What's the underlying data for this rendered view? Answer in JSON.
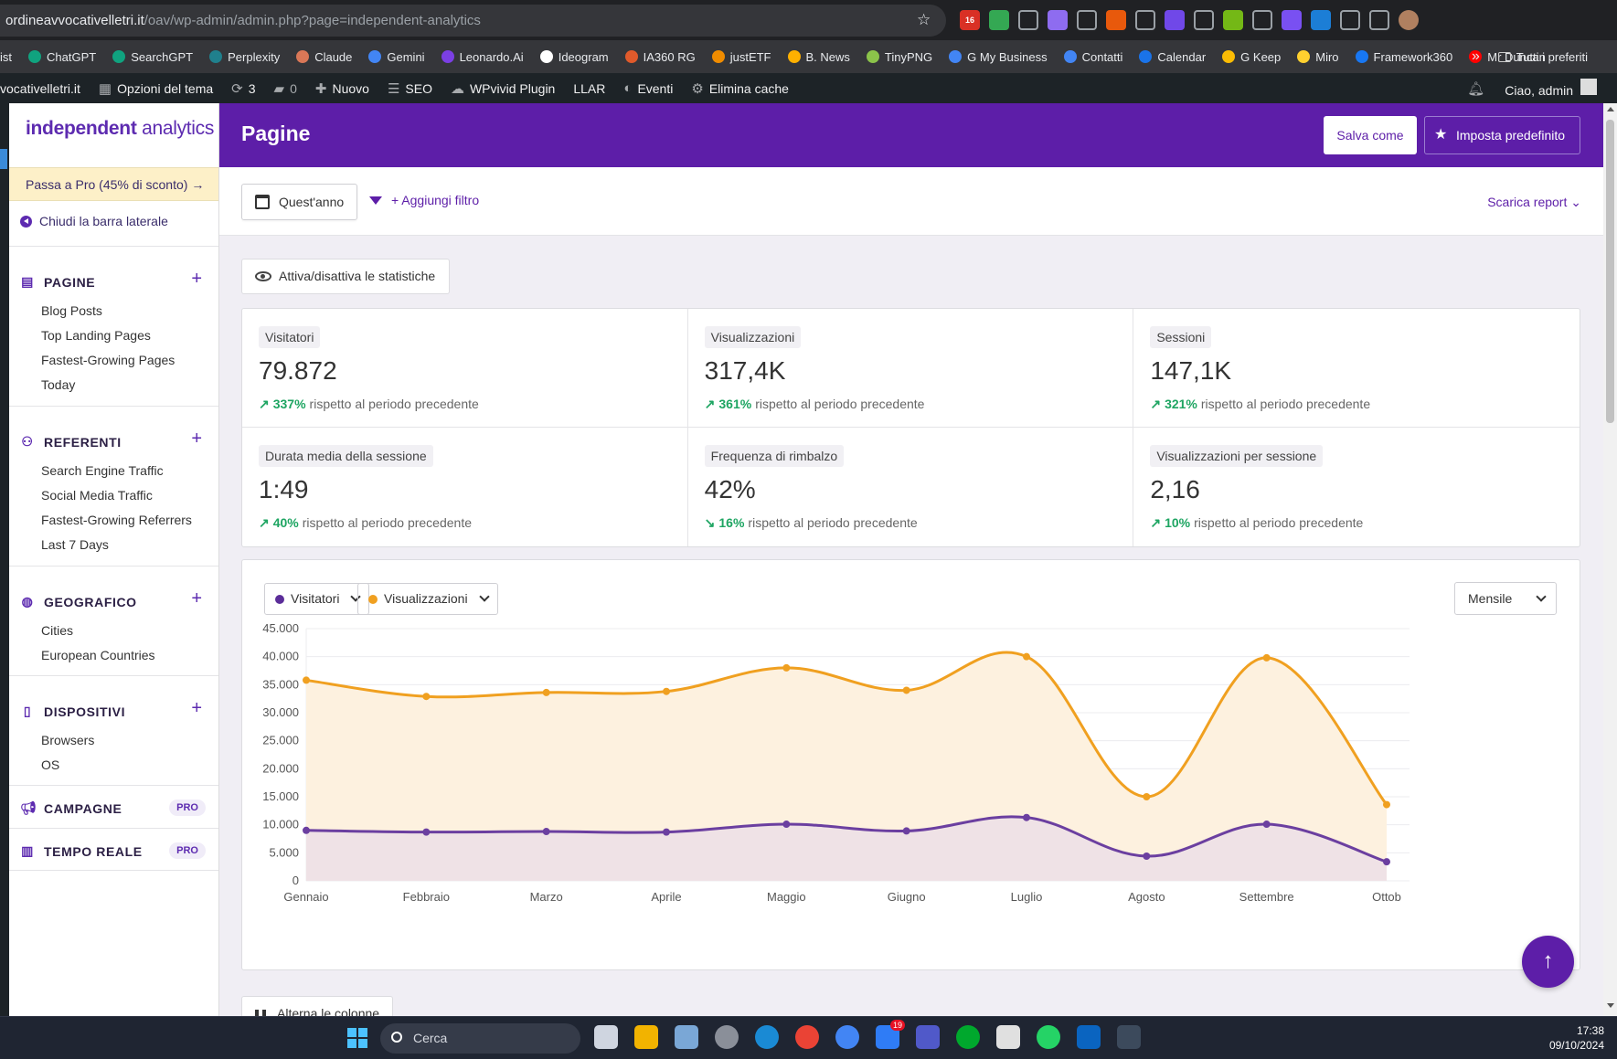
{
  "browser": {
    "url_host": "ordineavvocativelletri.it",
    "url_path": "/oav/wp-admin/admin.php?page=independent-analytics",
    "bookmarks": [
      "ist",
      "ChatGPT",
      "SearchGPT",
      "Perplexity",
      "Claude",
      "Gemini",
      "Leonardo.Ai",
      "Ideogram",
      "IA360 RG",
      "justETF",
      "B. News",
      "TinyPNG",
      "G My Business",
      "Contatti",
      "Calendar",
      "G Keep",
      "Miro",
      "Framework360",
      "Mr Duncan",
      "Tutti i preferiti"
    ],
    "bookmark_colors": [
      "#666",
      "#10a37f",
      "#10a37f",
      "#20808d",
      "#d97757",
      "#4285f4",
      "#7b3fe4",
      "#ffffff",
      "#e05a2b",
      "#f08c00",
      "#ffb000",
      "#8bc34a",
      "#4285f4",
      "#4285f4",
      "#1a73e8",
      "#fbbc04",
      "#ffd02f",
      "#1877f2",
      "#ff0000",
      "#aaa"
    ],
    "ext_colors": [
      "#d93025",
      "#34a853",
      "#9aa0a6",
      "#8e6cf0",
      "#9aa0a6",
      "#e8590c",
      "#9aa0a6",
      "#7048e8",
      "#9aa0a6",
      "#74b816",
      "#9aa0a6",
      "#7950f2",
      "#1c7ed6",
      "#9aa0a6",
      "#9aa0a6"
    ],
    "badge_count": "16"
  },
  "wpbar": {
    "site": "vocativelletri.it",
    "theme_options": "Opzioni del tema",
    "updates": "3",
    "comments": "0",
    "new": "Nuovo",
    "seo": "SEO",
    "wpvivid": "WPvivid Plugin",
    "llar": "LLAR",
    "events": "Eventi",
    "cache": "Elimina cache",
    "greeting": "Ciao, admin"
  },
  "sidebar": {
    "logo_bold": "independent",
    "logo_rest": " analytics",
    "promo": "Passa a Pro (45% di sconto)",
    "collapse": "Chiudi la barra laterale",
    "sections": {
      "pages": {
        "title": "PAGINE",
        "items": [
          "Blog Posts",
          "Top Landing Pages",
          "Fastest-Growing Pages",
          "Today"
        ]
      },
      "referrers": {
        "title": "REFERENTI",
        "items": [
          "Search Engine Traffic",
          "Social Media Traffic",
          "Fastest-Growing Referrers",
          "Last 7 Days"
        ]
      },
      "geo": {
        "title": "GEOGRAFICO",
        "items": [
          "Cities",
          "European Countries"
        ]
      },
      "devices": {
        "title": "DISPOSITIVI",
        "items": [
          "Browsers",
          "OS"
        ]
      },
      "campaigns": {
        "title": "CAMPAGNE",
        "badge": "PRO"
      },
      "realtime": {
        "title": "TEMPO REALE",
        "badge": "PRO"
      }
    }
  },
  "header": {
    "title": "Pagine",
    "save_as": "Salva come",
    "set_default": "Imposta predefinito"
  },
  "toolbar": {
    "date_range": "Quest'anno",
    "add_filter": "+ Aggiungi filtro",
    "download": "Scarica report"
  },
  "toggle_stats": "Attiva/disattiva le statistiche",
  "stats": [
    {
      "label": "Visitatori",
      "value": "79.872",
      "change": "337%",
      "direction": "up",
      "suffix": "rispetto al periodo precedente"
    },
    {
      "label": "Visualizzazioni",
      "value": "317,4K",
      "change": "361%",
      "direction": "up",
      "suffix": "rispetto al periodo precedente"
    },
    {
      "label": "Sessioni",
      "value": "147,1K",
      "change": "321%",
      "direction": "up",
      "suffix": "rispetto al periodo precedente"
    },
    {
      "label": "Durata media della sessione",
      "value": "1:49",
      "change": "40%",
      "direction": "up",
      "suffix": "rispetto al periodo precedente"
    },
    {
      "label": "Frequenza di rimbalzo",
      "value": "42%",
      "change": "16%",
      "direction": "down",
      "suffix": "rispetto al periodo precedente"
    },
    {
      "label": "Visualizzazioni per sessione",
      "value": "2,16",
      "change": "10%",
      "direction": "up",
      "suffix": "rispetto al periodo precedente"
    }
  ],
  "chart_controls": {
    "series1": "Visitatori",
    "series2": "Visualizzazioni",
    "period": "Mensile"
  },
  "chart_data": {
    "type": "area",
    "categories": [
      "Gennaio",
      "Febbraio",
      "Marzo",
      "Aprile",
      "Maggio",
      "Giugno",
      "Luglio",
      "Agosto",
      "Settembre",
      "Ottobre"
    ],
    "category_labels": [
      "Gennaio",
      "Febbraio",
      "Marzo",
      "Aprile",
      "Maggio",
      "Giugno",
      "Luglio",
      "Agosto",
      "Settembre",
      "Ottob"
    ],
    "series": [
      {
        "name": "Visualizzazioni",
        "color": "#f0a020",
        "values": [
          35800,
          32900,
          33600,
          33800,
          38000,
          34000,
          40000,
          15000,
          39800,
          13600
        ]
      },
      {
        "name": "Visitatori",
        "color": "#6b3fa0",
        "values": [
          9000,
          8700,
          8800,
          8700,
          10100,
          8900,
          11300,
          4400,
          10100,
          3400
        ]
      }
    ],
    "y_ticks": [
      "0",
      "5.000",
      "10.000",
      "15.000",
      "20.000",
      "25.000",
      "30.000",
      "35.000",
      "40.000",
      "45.000"
    ],
    "ylim": [
      0,
      45000
    ],
    "grid": true
  },
  "bottom": {
    "toggle_columns": "Alterna le colonne"
  },
  "taskbar": {
    "search": "Cerca",
    "time": "17:38",
    "date": "09/10/2024",
    "badge": "19",
    "app_colors": [
      "#cfd5e0",
      "#f2b300",
      "#7aa7d6",
      "#8a8f99",
      "#1a8ad4",
      "#ea4335",
      "#4285f4",
      "#2f7cf6",
      "#5059c9",
      "#00a82d",
      "#e0e0e0",
      "#25d366",
      "#0a64c0",
      "#3c4a5c"
    ]
  }
}
